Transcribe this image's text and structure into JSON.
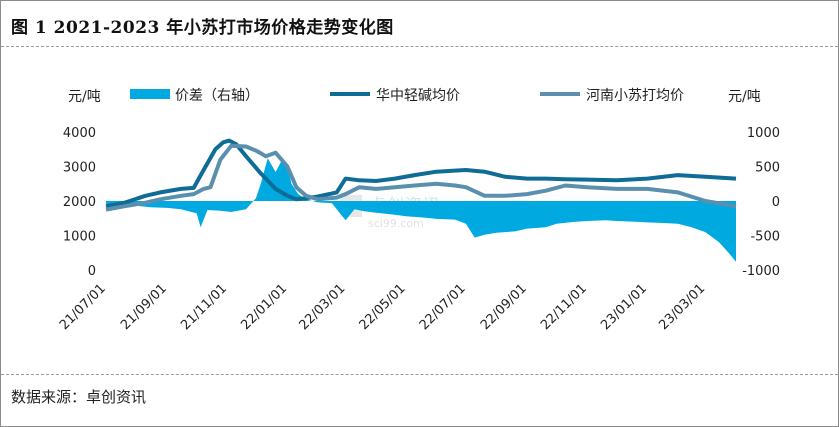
{
  "title": "图 1   2021-2023 年小苏打市场价格走势变化图",
  "source": "数据来源：卓创资讯",
  "watermark": "卓创资讯",
  "watermark_sub": "sci99.com",
  "chart_data": {
    "type": "line",
    "left_unit": "元/吨",
    "right_unit": "元/吨",
    "ylim_left": [
      0,
      4000
    ],
    "ylim_right": [
      -1000,
      1000
    ],
    "left_ticks": [
      "4000",
      "3000",
      "2000",
      "1000",
      "0"
    ],
    "right_ticks": [
      "1000",
      "500",
      "0",
      "-500",
      "-1000"
    ],
    "x_ticks": [
      "21/07/01",
      "21/09/01",
      "21/11/01",
      "22/01/01",
      "22/03/01",
      "22/05/01",
      "22/07/01",
      "22/09/01",
      "22/11/01",
      "23/01/01",
      "23/03/01"
    ],
    "x_start": "2021-07-01",
    "x_end": "2023-04-01",
    "grid": false,
    "legend": "top",
    "series": [
      {
        "name": "价差（右轴）",
        "kind": "area",
        "axis": "right",
        "color": "#00a9e0",
        "points": [
          [
            "2021-07-01",
            -60
          ],
          [
            "2021-07-15",
            -80
          ],
          [
            "2021-08-01",
            -70
          ],
          [
            "2021-08-15",
            -90
          ],
          [
            "2021-09-01",
            -100
          ],
          [
            "2021-09-15",
            -120
          ],
          [
            "2021-10-01",
            -180
          ],
          [
            "2021-10-05",
            -380
          ],
          [
            "2021-10-12",
            -130
          ],
          [
            "2021-10-25",
            -140
          ],
          [
            "2021-11-05",
            -160
          ],
          [
            "2021-11-20",
            -120
          ],
          [
            "2021-11-30",
            40
          ],
          [
            "2021-12-05",
            250
          ],
          [
            "2021-12-12",
            620
          ],
          [
            "2021-12-20",
            420
          ],
          [
            "2021-12-26",
            580
          ],
          [
            "2022-01-01",
            520
          ],
          [
            "2022-01-05",
            250
          ],
          [
            "2022-01-12",
            100
          ],
          [
            "2022-01-20",
            20
          ],
          [
            "2022-02-01",
            -20
          ],
          [
            "2022-02-15",
            -30
          ],
          [
            "2022-03-01",
            -280
          ],
          [
            "2022-03-10",
            -120
          ],
          [
            "2022-03-20",
            -150
          ],
          [
            "2022-04-01",
            -170
          ],
          [
            "2022-04-20",
            -200
          ],
          [
            "2022-05-01",
            -220
          ],
          [
            "2022-05-20",
            -240
          ],
          [
            "2022-06-01",
            -260
          ],
          [
            "2022-06-20",
            -270
          ],
          [
            "2022-07-01",
            -330
          ],
          [
            "2022-07-10",
            -530
          ],
          [
            "2022-07-20",
            -490
          ],
          [
            "2022-08-01",
            -460
          ],
          [
            "2022-08-20",
            -440
          ],
          [
            "2022-09-01",
            -400
          ],
          [
            "2022-09-20",
            -380
          ],
          [
            "2022-10-01",
            -330
          ],
          [
            "2022-10-20",
            -300
          ],
          [
            "2022-11-01",
            -290
          ],
          [
            "2022-11-20",
            -280
          ],
          [
            "2022-12-01",
            -290
          ],
          [
            "2022-12-20",
            -300
          ],
          [
            "2023-01-01",
            -310
          ],
          [
            "2023-01-20",
            -320
          ],
          [
            "2023-02-01",
            -330
          ],
          [
            "2023-02-15",
            -380
          ],
          [
            "2023-03-01",
            -450
          ],
          [
            "2023-03-15",
            -600
          ],
          [
            "2023-03-25",
            -760
          ],
          [
            "2023-04-01",
            -880
          ]
        ]
      },
      {
        "name": "华中轻碱均价",
        "kind": "line",
        "axis": "left",
        "color": "#0e6c97",
        "points": [
          [
            "2021-07-01",
            1850
          ],
          [
            "2021-07-20",
            1950
          ],
          [
            "2021-08-10",
            2150
          ],
          [
            "2021-08-25",
            2250
          ],
          [
            "2021-09-15",
            2350
          ],
          [
            "2021-09-28",
            2380
          ],
          [
            "2021-10-08",
            2900
          ],
          [
            "2021-10-20",
            3500
          ],
          [
            "2021-10-28",
            3700
          ],
          [
            "2021-11-03",
            3750
          ],
          [
            "2021-11-10",
            3650
          ],
          [
            "2021-11-20",
            3300
          ],
          [
            "2021-12-05",
            2800
          ],
          [
            "2021-12-20",
            2350
          ],
          [
            "2022-01-01",
            2150
          ],
          [
            "2022-01-10",
            2050
          ],
          [
            "2022-01-20",
            2080
          ],
          [
            "2022-02-01",
            2130
          ],
          [
            "2022-02-20",
            2250
          ],
          [
            "2022-03-01",
            2650
          ],
          [
            "2022-03-15",
            2600
          ],
          [
            "2022-04-01",
            2580
          ],
          [
            "2022-04-20",
            2650
          ],
          [
            "2022-05-10",
            2750
          ],
          [
            "2022-06-01",
            2850
          ],
          [
            "2022-06-20",
            2880
          ],
          [
            "2022-07-01",
            2900
          ],
          [
            "2022-07-20",
            2850
          ],
          [
            "2022-08-10",
            2700
          ],
          [
            "2022-09-01",
            2650
          ],
          [
            "2022-09-20",
            2650
          ],
          [
            "2022-10-10",
            2630
          ],
          [
            "2022-11-01",
            2620
          ],
          [
            "2022-12-01",
            2600
          ],
          [
            "2023-01-01",
            2650
          ],
          [
            "2023-02-01",
            2750
          ],
          [
            "2023-03-01",
            2700
          ],
          [
            "2023-04-01",
            2650
          ]
        ]
      },
      {
        "name": "河南小苏打均价",
        "kind": "line",
        "axis": "left",
        "color": "#5b8fae",
        "points": [
          [
            "2021-07-01",
            1750
          ],
          [
            "2021-07-20",
            1850
          ],
          [
            "2021-08-10",
            1950
          ],
          [
            "2021-08-25",
            2050
          ],
          [
            "2021-09-15",
            2150
          ],
          [
            "2021-09-28",
            2200
          ],
          [
            "2021-10-08",
            2350
          ],
          [
            "2021-10-15",
            2400
          ],
          [
            "2021-10-25",
            3200
          ],
          [
            "2021-11-05",
            3600
          ],
          [
            "2021-11-20",
            3580
          ],
          [
            "2021-12-01",
            3450
          ],
          [
            "2021-12-10",
            3300
          ],
          [
            "2021-12-20",
            3400
          ],
          [
            "2022-01-01",
            3000
          ],
          [
            "2022-01-10",
            2400
          ],
          [
            "2022-01-20",
            2150
          ],
          [
            "2022-02-01",
            2050
          ],
          [
            "2022-02-20",
            2100
          ],
          [
            "2022-03-01",
            2200
          ],
          [
            "2022-03-15",
            2400
          ],
          [
            "2022-04-01",
            2350
          ],
          [
            "2022-04-20",
            2400
          ],
          [
            "2022-05-10",
            2450
          ],
          [
            "2022-06-01",
            2500
          ],
          [
            "2022-06-20",
            2450
          ],
          [
            "2022-07-01",
            2400
          ],
          [
            "2022-07-20",
            2150
          ],
          [
            "2022-08-10",
            2150
          ],
          [
            "2022-09-01",
            2200
          ],
          [
            "2022-09-20",
            2300
          ],
          [
            "2022-10-10",
            2450
          ],
          [
            "2022-11-01",
            2400
          ],
          [
            "2022-12-01",
            2350
          ],
          [
            "2023-01-01",
            2350
          ],
          [
            "2023-02-01",
            2250
          ],
          [
            "2023-03-01",
            2000
          ],
          [
            "2023-04-01",
            1850
          ]
        ]
      }
    ]
  }
}
